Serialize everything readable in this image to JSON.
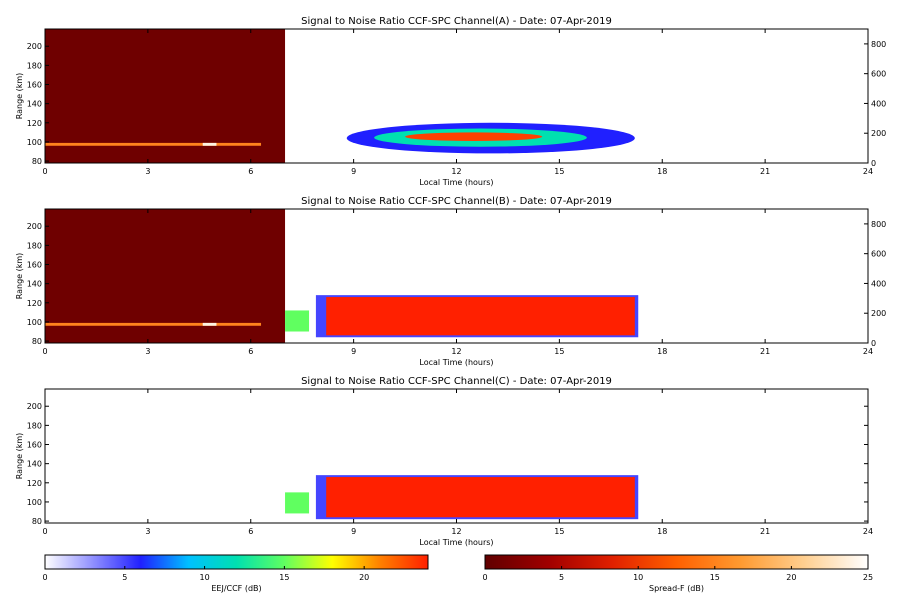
{
  "chart_data": [
    {
      "type": "heatmap",
      "title": "Signal to Noise Ratio CCF-SPC Channel(A) - Date: 07-Apr-2019",
      "xlabel": "Local Time (hours)",
      "ylabel": "Range (km)",
      "x_ticks": [
        0,
        3,
        6,
        9,
        12,
        15,
        18,
        21,
        24
      ],
      "y_ticks": [
        80,
        100,
        120,
        140,
        160,
        180,
        200
      ],
      "y2_ticks": [
        0,
        200,
        400,
        600,
        800
      ],
      "xlim": [
        0,
        24
      ],
      "ylim": [
        78,
        218
      ],
      "y2lim": [
        0,
        900
      ],
      "regions": [
        {
          "scale": "spread",
          "x0": 0,
          "x1": 7.0,
          "y0": 78,
          "y1": 218,
          "value": 1
        },
        {
          "scale": "spread",
          "x0": 0,
          "x1": 6.3,
          "y0": 96,
          "y1": 99,
          "value": 15
        },
        {
          "scale": "spread",
          "x0": 4.6,
          "x1": 5.0,
          "y0": 96,
          "y1": 99,
          "value": 24
        },
        {
          "scale": "eej",
          "x0": 8.8,
          "x1": 17.2,
          "y0": 88,
          "y1": 120,
          "value": 6,
          "shape": "ellipse"
        },
        {
          "scale": "eej",
          "x0": 9.6,
          "x1": 15.8,
          "y0": 95,
          "y1": 114,
          "value": 12,
          "shape": "ellipse"
        },
        {
          "scale": "eej",
          "x0": 10.5,
          "x1": 14.5,
          "y0": 101,
          "y1": 110,
          "value": 23,
          "shape": "ellipse"
        }
      ]
    },
    {
      "type": "heatmap",
      "title": "Signal to Noise Ratio CCF-SPC Channel(B) - Date: 07-Apr-2019",
      "xlabel": "Local Time (hours)",
      "ylabel": "Range (km)",
      "x_ticks": [
        0,
        3,
        6,
        9,
        12,
        15,
        18,
        21,
        24
      ],
      "y_ticks": [
        80,
        100,
        120,
        140,
        160,
        180,
        200
      ],
      "y2_ticks": [
        0,
        200,
        400,
        600,
        800
      ],
      "xlim": [
        0,
        24
      ],
      "ylim": [
        78,
        218
      ],
      "y2lim": [
        0,
        900
      ],
      "regions": [
        {
          "scale": "spread",
          "x0": 0,
          "x1": 7.0,
          "y0": 78,
          "y1": 218,
          "value": 1
        },
        {
          "scale": "spread",
          "x0": 0,
          "x1": 6.3,
          "y0": 96,
          "y1": 99,
          "value": 15
        },
        {
          "scale": "spread",
          "x0": 4.6,
          "x1": 5.0,
          "y0": 96,
          "y1": 99,
          "value": 24
        },
        {
          "scale": "eej",
          "x0": 7.0,
          "x1": 7.7,
          "y0": 90,
          "y1": 112,
          "value": 15
        },
        {
          "scale": "eej",
          "x0": 7.9,
          "x1": 17.3,
          "y0": 84,
          "y1": 128,
          "value": 5
        },
        {
          "scale": "eej",
          "x0": 8.2,
          "x1": 17.2,
          "y0": 86,
          "y1": 126,
          "value": 24
        }
      ]
    },
    {
      "type": "heatmap",
      "title": "Signal to Noise Ratio CCF-SPC Channel(C) - Date: 07-Apr-2019",
      "xlabel": "Local Time (hours)",
      "ylabel": "Range (km)",
      "x_ticks": [
        0,
        3,
        6,
        9,
        12,
        15,
        18,
        21,
        24
      ],
      "y_ticks": [
        80,
        100,
        120,
        140,
        160,
        180,
        200
      ],
      "xlim": [
        0,
        24
      ],
      "ylim": [
        78,
        218
      ],
      "regions": [
        {
          "scale": "eej",
          "x0": 7.0,
          "x1": 7.7,
          "y0": 88,
          "y1": 110,
          "value": 15
        },
        {
          "scale": "eej",
          "x0": 7.9,
          "x1": 17.3,
          "y0": 82,
          "y1": 128,
          "value": 5
        },
        {
          "scale": "eej",
          "x0": 8.2,
          "x1": 17.2,
          "y0": 84,
          "y1": 126,
          "value": 24
        }
      ]
    }
  ],
  "colorbars": [
    {
      "label": "EEJ/CCF (dB)",
      "ticks": [
        0,
        5,
        10,
        15,
        20
      ],
      "range": [
        0,
        24
      ],
      "colors": [
        "#ffffff",
        "#9090ff",
        "#2020ff",
        "#00c0ff",
        "#00e0b0",
        "#60ff60",
        "#ffff00",
        "#ff8000",
        "#ff2000"
      ]
    },
    {
      "label": "Spread-F (dB)",
      "ticks": [
        0,
        5,
        10,
        15,
        20,
        25
      ],
      "range": [
        0,
        25
      ],
      "colors": [
        "#600000",
        "#a00000",
        "#e02000",
        "#ff6000",
        "#ff9a30",
        "#ffcf90",
        "#ffffff"
      ]
    }
  ]
}
